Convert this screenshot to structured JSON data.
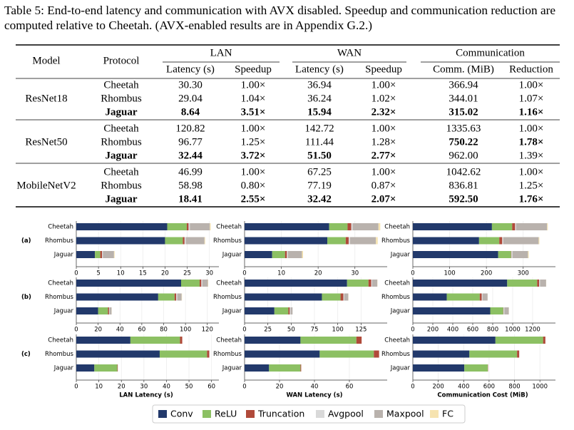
{
  "caption": "Table 5: End-to-end latency and communication with AVX disabled. Speedup and communication reduction are computed relative to Cheetah. (AVX-enabled results are in Appendix G.2.)",
  "table": {
    "header": {
      "model": "Model",
      "protocol": "Protocol",
      "groups": [
        {
          "name": "LAN",
          "columns": [
            "Latency (s)",
            "Speedup"
          ]
        },
        {
          "name": "WAN",
          "columns": [
            "Latency (s)",
            "Speedup"
          ]
        },
        {
          "name": "Communication",
          "columns": [
            "Comm. (MiB)",
            "Reduction"
          ]
        }
      ]
    },
    "groups": [
      {
        "model": "ResNet18",
        "rows": [
          {
            "protocol": "Cheetah",
            "cells": [
              "30.30",
              "1.00×",
              "36.94",
              "1.00×",
              "366.94",
              "1.00×"
            ]
          },
          {
            "protocol": "Rhombus",
            "cells": [
              "29.04",
              "1.04×",
              "36.24",
              "1.02×",
              "344.01",
              "1.07×"
            ]
          },
          {
            "protocol": {
              "text": "Jaguar",
              "bold": true
            },
            "cells": [
              {
                "text": "8.64",
                "bold": true
              },
              {
                "text": "3.51×",
                "bold": true
              },
              {
                "text": "15.94",
                "bold": true
              },
              {
                "text": "2.32×",
                "bold": true
              },
              {
                "text": "315.02",
                "bold": true
              },
              {
                "text": "1.16×",
                "bold": true
              }
            ]
          }
        ]
      },
      {
        "model": "ResNet50",
        "rows": [
          {
            "protocol": "Cheetah",
            "cells": [
              "120.82",
              "1.00×",
              "142.72",
              "1.00×",
              "1335.63",
              "1.00×"
            ]
          },
          {
            "protocol": "Rhombus",
            "cells": [
              "96.77",
              "1.25×",
              "111.44",
              "1.28×",
              {
                "text": "750.22",
                "bold": true
              },
              {
                "text": "1.78×",
                "bold": true
              }
            ]
          },
          {
            "protocol": {
              "text": "Jaguar",
              "bold": true
            },
            "cells": [
              {
                "text": "32.44",
                "bold": true
              },
              {
                "text": "3.72×",
                "bold": true
              },
              {
                "text": "51.50",
                "bold": true
              },
              {
                "text": "2.77×",
                "bold": true
              },
              "962.00",
              "1.39×"
            ]
          }
        ]
      },
      {
        "model": "MobileNetV2",
        "rows": [
          {
            "protocol": "Cheetah",
            "cells": [
              "46.99",
              "1.00×",
              "67.25",
              "1.00×",
              "1042.62",
              "1.00×"
            ]
          },
          {
            "protocol": "Rhombus",
            "cells": [
              "58.98",
              "0.80×",
              "77.19",
              "0.87×",
              "836.81",
              "1.25×"
            ]
          },
          {
            "protocol": {
              "text": "Jaguar",
              "bold": true
            },
            "cells": [
              {
                "text": "18.41",
                "bold": true
              },
              {
                "text": "2.55×",
                "bold": true
              },
              {
                "text": "32.42",
                "bold": true
              },
              {
                "text": "2.07×",
                "bold": true
              },
              {
                "text": "592.50",
                "bold": true
              },
              {
                "text": "1.76×",
                "bold": true
              }
            ]
          }
        ]
      }
    ]
  },
  "chart_data": [
    {
      "type": "hbar",
      "panel_label": "(a)",
      "categories": [
        "Cheetah",
        "Rhombus",
        "Jaguar"
      ],
      "xlim": [
        0,
        31.5
      ],
      "xticks": [
        0,
        5,
        10,
        15,
        20,
        25,
        30
      ],
      "grid": true,
      "series": [
        {
          "name": "Conv",
          "color": "#22396b",
          "values": [
            20.5,
            20,
            4.2
          ]
        },
        {
          "name": "ReLU",
          "color": "#8cc063",
          "values": [
            4.4,
            4,
            1.2
          ]
        },
        {
          "name": "Truncation",
          "color": "#b04a3a",
          "values": [
            0.4,
            0.4,
            0.4
          ]
        },
        {
          "name": "Avgpool",
          "color": "#d9d9d9",
          "values": [
            0.3,
            0.3,
            0.2
          ]
        },
        {
          "name": "Maxpool",
          "color": "#b9b2ad",
          "values": [
            4.5,
            4.2,
            2.5
          ]
        },
        {
          "name": "FC",
          "color": "#f6e3b0",
          "values": [
            0.2,
            0.14,
            0.14
          ]
        }
      ]
    },
    {
      "type": "hbar",
      "categories": [
        "Cheetah",
        "Rhombus",
        "Jaguar"
      ],
      "xlim": [
        0,
        38
      ],
      "xticks": [
        0,
        10,
        20,
        30
      ],
      "grid": true,
      "series": [
        {
          "name": "Conv",
          "color": "#22396b",
          "values": [
            23,
            22.5,
            7.5
          ]
        },
        {
          "name": "ReLU",
          "color": "#8cc063",
          "values": [
            5,
            5,
            3.5
          ]
        },
        {
          "name": "Truncation",
          "color": "#b04a3a",
          "values": [
            1,
            0.8,
            0.5
          ]
        },
        {
          "name": "Avgpool",
          "color": "#d9d9d9",
          "values": [
            0.4,
            0.4,
            0.3
          ]
        },
        {
          "name": "Maxpool",
          "color": "#b9b2ad",
          "values": [
            7,
            7,
            3.8
          ]
        },
        {
          "name": "FC",
          "color": "#f6e3b0",
          "values": [
            0.5,
            0.5,
            0.3
          ]
        }
      ]
    },
    {
      "type": "hbar",
      "categories": [
        "Cheetah",
        "Rhombus",
        "Jaguar"
      ],
      "xlim": [
        0,
        380
      ],
      "xticks": [
        0,
        100,
        200,
        300
      ],
      "grid": true,
      "series": [
        {
          "name": "Conv",
          "color": "#22396b",
          "values": [
            215,
            180,
            232
          ]
        },
        {
          "name": "ReLU",
          "color": "#8cc063",
          "values": [
            55,
            55,
            35
          ]
        },
        {
          "name": "Truncation",
          "color": "#b04a3a",
          "values": [
            8,
            8,
            1
          ]
        },
        {
          "name": "Avgpool",
          "color": "#d9d9d9",
          "values": [
            3,
            3,
            3
          ]
        },
        {
          "name": "Maxpool",
          "color": "#b9b2ad",
          "values": [
            84,
            96,
            42
          ]
        },
        {
          "name": "FC",
          "color": "#f6e3b0",
          "values": [
            2,
            2,
            2
          ]
        }
      ]
    },
    {
      "type": "hbar",
      "panel_label": "(b)",
      "categories": [
        "Cheetah",
        "Rhombus",
        "Jaguar"
      ],
      "xlim": [
        0,
        128
      ],
      "xticks": [
        0,
        20,
        40,
        60,
        80,
        100,
        120
      ],
      "grid": true,
      "series": [
        {
          "name": "Conv",
          "color": "#22396b",
          "values": [
            96,
            75,
            20
          ]
        },
        {
          "name": "ReLU",
          "color": "#8cc063",
          "values": [
            17,
            15,
            9
          ]
        },
        {
          "name": "Truncation",
          "color": "#b04a3a",
          "values": [
            1.5,
            1.5,
            1
          ]
        },
        {
          "name": "Avgpool",
          "color": "#d9d9d9",
          "values": [
            1,
            1,
            0.5
          ]
        },
        {
          "name": "Maxpool",
          "color": "#b9b2ad",
          "values": [
            5,
            4,
            1.8
          ]
        },
        {
          "name": "FC",
          "color": "#f6e3b0",
          "values": [
            0.3,
            0.3,
            0.1
          ]
        }
      ]
    },
    {
      "type": "hbar",
      "categories": [
        "Cheetah",
        "Rhombus",
        "Jaguar"
      ],
      "xlim": [
        0,
        150
      ],
      "xticks": [
        0,
        25,
        50,
        75,
        100,
        125
      ],
      "grid": true,
      "series": [
        {
          "name": "Conv",
          "color": "#22396b",
          "values": [
            110,
            83,
            32
          ]
        },
        {
          "name": "ReLU",
          "color": "#8cc063",
          "values": [
            23,
            20,
            15
          ]
        },
        {
          "name": "Truncation",
          "color": "#b04a3a",
          "values": [
            3,
            3,
            1.5
          ]
        },
        {
          "name": "Avgpool",
          "color": "#d9d9d9",
          "values": [
            1,
            1,
            1
          ]
        },
        {
          "name": "Maxpool",
          "color": "#b9b2ad",
          "values": [
            5.5,
            4.3,
            2
          ]
        },
        {
          "name": "FC",
          "color": "#f6e3b0",
          "values": [
            0.2,
            0.2,
            0
          ]
        }
      ]
    },
    {
      "type": "hbar",
      "categories": [
        "Cheetah",
        "Rhombus",
        "Jaguar"
      ],
      "xlim": [
        0,
        1400
      ],
      "xticks": [
        0,
        200,
        400,
        600,
        800,
        1000,
        1200
      ],
      "grid": true,
      "series": [
        {
          "name": "Conv",
          "color": "#22396b",
          "values": [
            945,
            340,
            775
          ]
        },
        {
          "name": "ReLU",
          "color": "#8cc063",
          "values": [
            300,
            330,
            130
          ]
        },
        {
          "name": "Truncation",
          "color": "#b04a3a",
          "values": [
            20,
            20,
            2
          ]
        },
        {
          "name": "Avgpool",
          "color": "#d9d9d9",
          "values": [
            10,
            10,
            10
          ]
        },
        {
          "name": "Maxpool",
          "color": "#b9b2ad",
          "values": [
            60,
            49,
            44
          ]
        },
        {
          "name": "FC",
          "color": "#f6e3b0",
          "values": [
            1,
            1,
            1
          ]
        }
      ]
    },
    {
      "type": "hbar",
      "panel_label": "(c)",
      "xlabel": "LAN Latency (s)",
      "categories": [
        "Cheetah",
        "Rhombus",
        "Jaguar"
      ],
      "xlim": [
        0,
        62
      ],
      "xticks": [
        0,
        10,
        20,
        30,
        40,
        50,
        60
      ],
      "grid": true,
      "series": [
        {
          "name": "Conv",
          "color": "#22396b",
          "values": [
            24,
            37,
            8
          ]
        },
        {
          "name": "ReLU",
          "color": "#8cc063",
          "values": [
            22,
            21,
            10.2
          ]
        },
        {
          "name": "Truncation",
          "color": "#b04a3a",
          "values": [
            1,
            1,
            0.2
          ]
        },
        {
          "name": "Avgpool",
          "color": "#d9d9d9",
          "values": [
            0,
            0,
            0
          ]
        },
        {
          "name": "Maxpool",
          "color": "#b9b2ad",
          "values": [
            0,
            0,
            0
          ]
        },
        {
          "name": "FC",
          "color": "#f6e3b0",
          "values": [
            0,
            0,
            0
          ]
        }
      ]
    },
    {
      "type": "hbar",
      "xlabel": "WAN Latency (s)",
      "categories": [
        "Cheetah",
        "Rhombus",
        "Jaguar"
      ],
      "xlim": [
        0,
        80
      ],
      "xticks": [
        0,
        20,
        40,
        60
      ],
      "grid": true,
      "series": [
        {
          "name": "Conv",
          "color": "#22396b",
          "values": [
            32,
            43,
            14
          ]
        },
        {
          "name": "ReLU",
          "color": "#8cc063",
          "values": [
            32,
            31,
            18
          ]
        },
        {
          "name": "Truncation",
          "color": "#b04a3a",
          "values": [
            3,
            3,
            0.4
          ]
        },
        {
          "name": "Avgpool",
          "color": "#d9d9d9",
          "values": [
            0,
            0,
            0
          ]
        },
        {
          "name": "Maxpool",
          "color": "#b9b2ad",
          "values": [
            0,
            0,
            0
          ]
        },
        {
          "name": "FC",
          "color": "#f6e3b0",
          "values": [
            0,
            0,
            0
          ]
        }
      ]
    },
    {
      "type": "hbar",
      "xlabel": "Communication Cost (MiB)",
      "categories": [
        "Cheetah",
        "Rhombus",
        "Jaguar"
      ],
      "xlim": [
        0,
        1100
      ],
      "xticks": [
        0,
        200,
        400,
        600,
        800,
        1000
      ],
      "grid": true,
      "series": [
        {
          "name": "Conv",
          "color": "#22396b",
          "values": [
            650,
            445,
            405
          ]
        },
        {
          "name": "ReLU",
          "color": "#8cc063",
          "values": [
            375,
            375,
            185
          ]
        },
        {
          "name": "Truncation",
          "color": "#b04a3a",
          "values": [
            18,
            17,
            2
          ]
        },
        {
          "name": "Avgpool",
          "color": "#d9d9d9",
          "values": [
            0,
            0,
            0
          ]
        },
        {
          "name": "Maxpool",
          "color": "#b9b2ad",
          "values": [
            0,
            0,
            0
          ]
        },
        {
          "name": "FC",
          "color": "#f6e3b0",
          "values": [
            0,
            0,
            0
          ]
        }
      ]
    }
  ]
}
